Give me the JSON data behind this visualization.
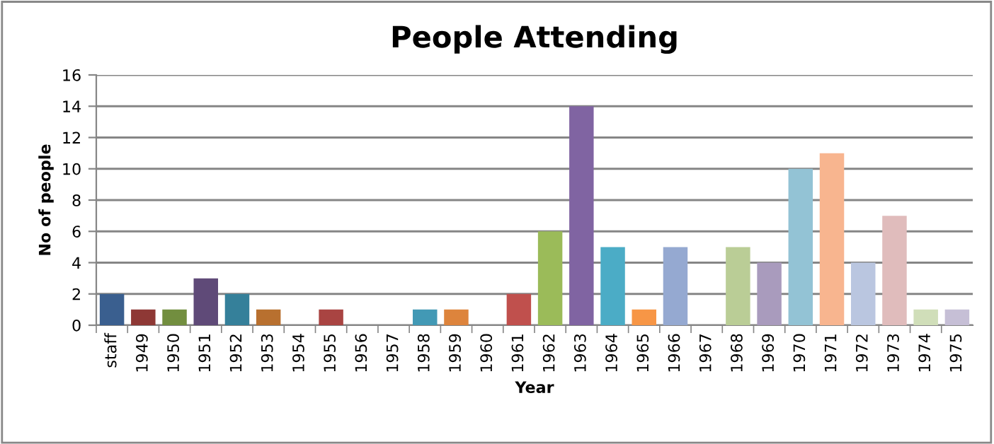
{
  "chart_data": {
    "type": "bar",
    "title": "People Attending",
    "xlabel": "Year",
    "ylabel": "No of people",
    "categories": [
      "staff",
      "1949",
      "1950",
      "1951",
      "1952",
      "1953",
      "1954",
      "1955",
      "1956",
      "1957",
      "1958",
      "1959",
      "1960",
      "1961",
      "1962",
      "1963",
      "1964",
      "1965",
      "1966",
      "1967",
      "1968",
      "1969",
      "1970",
      "1971",
      "1972",
      "1973",
      "1974",
      "1975"
    ],
    "values": [
      2,
      1,
      1,
      3,
      2,
      1,
      0,
      1,
      0,
      0,
      1,
      1,
      0,
      2,
      6,
      14,
      5,
      1,
      5,
      0,
      5,
      4,
      10,
      11,
      4,
      7,
      1,
      1
    ],
    "colors": [
      "#3a5f8f",
      "#8e3835",
      "#728e3f",
      "#5f4a78",
      "#35809a",
      "#b8702f",
      "#4372aa",
      "#a94442",
      "#8aa64a",
      "#72599a",
      "#4299b5",
      "#dd843c",
      "#4f81bd",
      "#c0504d",
      "#9bbb59",
      "#8064a2",
      "#4bacc6",
      "#f79646",
      "#95a9d1",
      "#d99694",
      "#bacd96",
      "#a99bbd",
      "#93c3d5",
      "#f8b58f",
      "#bac6e0",
      "#e0bcbc",
      "#d0deb9",
      "#c6bfd6"
    ],
    "ylim": [
      0,
      16
    ],
    "yticks": [
      0,
      2,
      4,
      6,
      8,
      10,
      12,
      14,
      16
    ],
    "grid": "y",
    "legend": false
  }
}
